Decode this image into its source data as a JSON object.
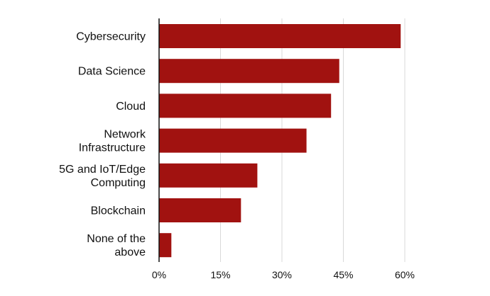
{
  "chart_data": {
    "type": "bar",
    "orientation": "horizontal",
    "title": "",
    "xlabel": "",
    "ylabel": "",
    "categories": [
      [
        "Cybersecurity"
      ],
      [
        "Data Science"
      ],
      [
        "Cloud"
      ],
      [
        "Network",
        "Infrastructure"
      ],
      [
        "5G and IoT/Edge",
        "Computing"
      ],
      [
        "Blockchain"
      ],
      [
        "None of the",
        "above"
      ]
    ],
    "values": [
      59,
      44,
      42,
      36,
      24,
      20,
      3
    ],
    "value_unit": "%",
    "xlim": [
      0,
      70
    ],
    "xticks": [
      0,
      15,
      30,
      45,
      60
    ],
    "xtick_labels": [
      "0%",
      "15%",
      "30%",
      "45%",
      "60%"
    ],
    "bar_color": "#a11210",
    "grid_color": "#d9d9d9",
    "axis_color": "#111111",
    "grid": true,
    "legend": false
  }
}
